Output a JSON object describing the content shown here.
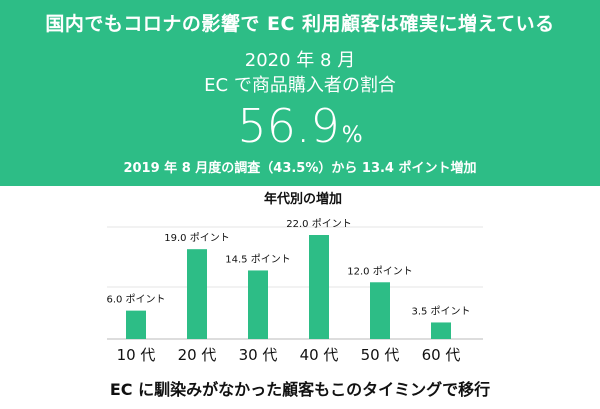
{
  "headline": "国内でもコロナの影響で EC 利用顧客は確実に増えている",
  "stat_year": "2020 年 8 月",
  "stat_label": "EC で商品購入者の割合",
  "stat_value": "56.9",
  "stat_unit": "%",
  "stat_note": "2019 年 8 月度の調査（43.5%）から 13.4 ポイント増加",
  "footer": "EC に馴染みがなかった顧客もこのタイミングで移行",
  "colors": {
    "banner": "#2dbd86",
    "bar": "#2dbd86",
    "text": "#111111"
  },
  "chart_data": {
    "type": "bar",
    "title": "年代別の増加",
    "categories": [
      "10 代",
      "20 代",
      "30 代",
      "40 代",
      "50 代",
      "60 代"
    ],
    "values": [
      6.0,
      19.0,
      14.5,
      22.0,
      12.0,
      3.5
    ],
    "data_labels": [
      "6.0 ポイント",
      "19.0 ポイント",
      "14.5 ポイント",
      "22.0 ポイント",
      "12.0 ポイント",
      "3.5 ポイント"
    ],
    "ylim": [
      0,
      22
    ],
    "grid": true,
    "legend": "none"
  }
}
